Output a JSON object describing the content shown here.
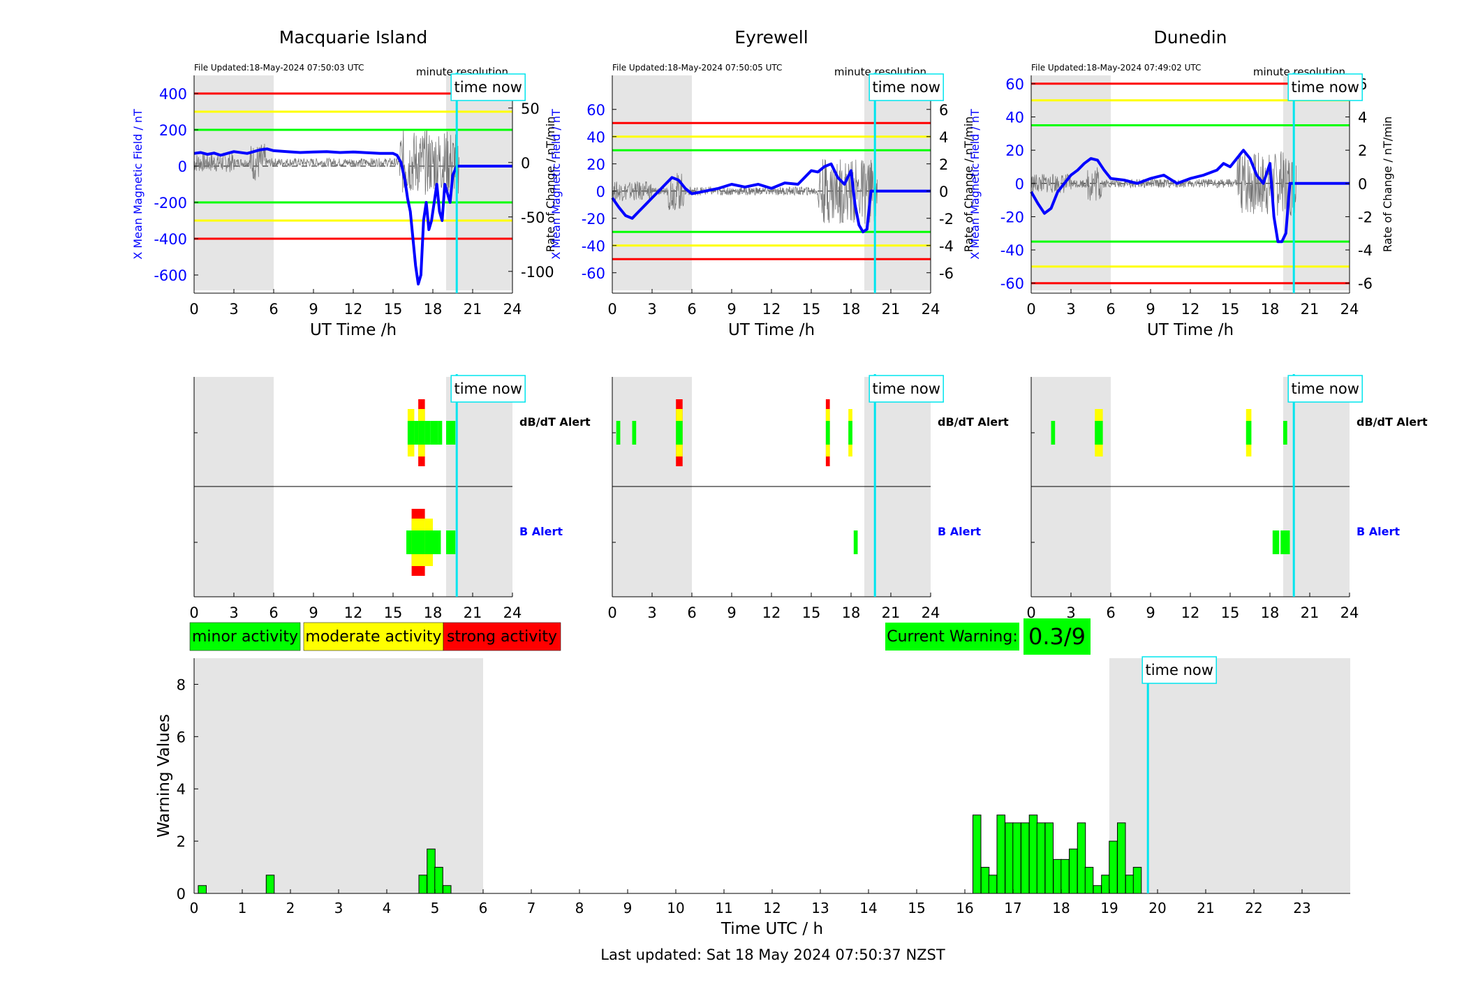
{
  "stations": [
    {
      "name": "Macquarie Island",
      "file_updated": "File Updated:18-May-2024 07:50:03 UTC",
      "resolution_label": "minute resolution",
      "b_axis": {
        "label": "X Mean Magnetic Field / nT",
        "range": [
          -700,
          500
        ],
        "ticks": [
          400,
          200,
          0,
          -200,
          -400,
          -600
        ]
      },
      "rate_axis": {
        "label": "Rate of Change / nT/min",
        "range": [
          -120,
          80
        ],
        "ticks": [
          50,
          0,
          -50,
          -100
        ]
      },
      "thresholds": {
        "green": 200,
        "yellow": 300,
        "red": 400
      },
      "b_series": {
        "x": [
          0,
          0.5,
          1,
          1.5,
          2,
          3,
          4,
          5,
          5.5,
          6,
          7,
          8,
          9,
          10,
          11,
          12,
          13,
          14,
          15,
          15.3,
          15.6,
          15.9,
          16.1,
          16.3,
          16.5,
          16.7,
          16.9,
          17.1,
          17.3,
          17.5,
          17.7,
          17.9,
          18.1,
          18.3,
          18.5,
          18.7,
          18.9,
          19.1,
          19.3,
          19.5,
          19.8,
          20.0,
          24
        ],
        "y": [
          70,
          75,
          65,
          72,
          60,
          80,
          70,
          90,
          95,
          85,
          80,
          75,
          78,
          80,
          75,
          78,
          74,
          70,
          70,
          60,
          20,
          -80,
          -180,
          -250,
          -400,
          -550,
          -650,
          -600,
          -300,
          -200,
          -350,
          -300,
          -200,
          -100,
          -250,
          -300,
          -100,
          -150,
          -200,
          -50,
          0,
          0,
          0
        ]
      },
      "alerts_dbdt": [
        {
          "x": 16.1,
          "w": 0.5,
          "level": 2
        },
        {
          "x": 16.6,
          "w": 0.3,
          "level": 1
        },
        {
          "x": 16.9,
          "w": 0.5,
          "level": 3
        },
        {
          "x": 17.4,
          "w": 0.4,
          "level": 1
        },
        {
          "x": 17.8,
          "w": 0.6,
          "level": 1
        },
        {
          "x": 18.4,
          "w": 0.3,
          "level": 0
        },
        {
          "x": 19.0,
          "w": 0.7,
          "level": 1
        }
      ],
      "alerts_b": [
        {
          "x": 16.0,
          "w": 0.4,
          "level": 1
        },
        {
          "x": 16.4,
          "w": 1.0,
          "level": 3
        },
        {
          "x": 17.4,
          "w": 0.6,
          "level": 2
        },
        {
          "x": 18.0,
          "w": 0.6,
          "level": 1
        },
        {
          "x": 19.0,
          "w": 0.7,
          "level": 1
        }
      ]
    },
    {
      "name": "Eyrewell",
      "file_updated": "File Updated:18-May-2024 07:50:05 UTC",
      "resolution_label": "minute resolution",
      "b_axis": {
        "label": "X Mean Magnetic Field / nT",
        "range": [
          -75,
          85
        ],
        "ticks": [
          60,
          40,
          20,
          0,
          -20,
          -40,
          -60
        ]
      },
      "rate_axis": {
        "label": "Rate of Change / nT/min",
        "range": [
          -7.5,
          8.5
        ],
        "ticks": [
          6,
          4,
          2,
          0,
          -2,
          -4,
          -6
        ]
      },
      "thresholds": {
        "green": 30,
        "yellow": 40,
        "red": 50
      },
      "b_series": {
        "x": [
          0,
          0.5,
          1,
          1.5,
          2,
          2.5,
          3,
          3.5,
          4,
          4.5,
          5,
          5.5,
          6,
          7,
          8,
          9,
          10,
          11,
          12,
          13,
          14,
          14.5,
          15,
          15.5,
          16,
          16.5,
          17,
          17.5,
          18,
          18.3,
          18.6,
          18.9,
          19.2,
          19.5,
          24
        ],
        "y": [
          -5,
          -12,
          -18,
          -20,
          -15,
          -10,
          -5,
          0,
          5,
          10,
          8,
          2,
          -2,
          0,
          2,
          5,
          3,
          5,
          2,
          6,
          5,
          10,
          15,
          14,
          18,
          20,
          10,
          5,
          15,
          -10,
          -25,
          -30,
          -28,
          0,
          0
        ]
      },
      "alerts_dbdt": [
        {
          "x": 0.3,
          "w": 0.3,
          "level": 1
        },
        {
          "x": 1.5,
          "w": 0.3,
          "level": 1
        },
        {
          "x": 4.8,
          "w": 0.5,
          "level": 3
        },
        {
          "x": 16.1,
          "w": 0.3,
          "level": 3
        },
        {
          "x": 17.8,
          "w": 0.3,
          "level": 2
        }
      ],
      "alerts_b": [
        {
          "x": 18.2,
          "w": 0.3,
          "level": 1
        }
      ]
    },
    {
      "name": "Dunedin",
      "file_updated": "File Updated:18-May-2024 07:49:02 UTC",
      "resolution_label": "minute resolution",
      "b_axis": {
        "label": "X Mean Magnetic Field / nT",
        "range": [
          -66,
          65
        ],
        "ticks": [
          60,
          40,
          20,
          0,
          -20,
          -40,
          -60
        ]
      },
      "rate_axis": {
        "label": "Rate of Change / nT/min",
        "range": [
          -6.6,
          6.5
        ],
        "ticks": [
          6,
          4,
          2,
          0,
          -2,
          -4,
          -6
        ]
      },
      "thresholds": {
        "green": 35,
        "yellow": 50,
        "red": 60
      },
      "b_series": {
        "x": [
          0,
          0.5,
          1,
          1.5,
          2,
          2.5,
          3,
          3.5,
          4,
          4.5,
          5,
          5.5,
          6,
          7,
          8,
          9,
          10,
          11,
          12,
          13,
          14,
          14.5,
          15,
          15.5,
          16,
          16.5,
          17,
          17.5,
          18,
          18.3,
          18.6,
          18.9,
          19.2,
          19.5,
          24
        ],
        "y": [
          -5,
          -12,
          -18,
          -15,
          -5,
          0,
          5,
          8,
          12,
          15,
          14,
          8,
          3,
          2,
          0,
          3,
          5,
          0,
          3,
          5,
          8,
          12,
          10,
          15,
          20,
          15,
          5,
          0,
          12,
          -20,
          -35,
          -35,
          -30,
          0,
          0
        ]
      },
      "alerts_dbdt": [
        {
          "x": 1.5,
          "w": 0.3,
          "level": 1
        },
        {
          "x": 4.8,
          "w": 0.6,
          "level": 2
        },
        {
          "x": 16.2,
          "w": 0.4,
          "level": 2
        },
        {
          "x": 19.0,
          "w": 0.3,
          "level": 1
        }
      ],
      "alerts_b": [
        {
          "x": 18.2,
          "w": 0.5,
          "level": 1
        },
        {
          "x": 18.8,
          "w": 0.7,
          "level": 1
        }
      ]
    }
  ],
  "common": {
    "x_axis_label": "UT Time /h",
    "x_ticks": [
      0,
      3,
      6,
      9,
      12,
      15,
      18,
      21,
      24
    ],
    "time_now_label": "time now",
    "time_now_hour": 19.8,
    "night_shading": [
      [
        0,
        6
      ],
      [
        19,
        24
      ]
    ],
    "dbdt_alert_label": "dB/dT Alert",
    "b_alert_label": "B Alert"
  },
  "legend": {
    "minor": "minor activity",
    "moderate": "moderate activity",
    "strong": "strong activity",
    "current_warning_label": "Current Warning:",
    "current_warning_value": "0.3/9"
  },
  "colors": {
    "green": "#00ff00",
    "yellow": "#ffff00",
    "red": "#ff0000",
    "blue": "#0000ff",
    "cyan": "#00e5ee",
    "shade": "#e5e5e5"
  },
  "chart_data": {
    "type": "bar",
    "xlabel": "Time UTC / h",
    "ylabel": "Warning Values",
    "xlim": [
      0,
      24
    ],
    "ylim": [
      0,
      9
    ],
    "x_ticks": [
      0,
      1,
      2,
      3,
      4,
      5,
      6,
      7,
      8,
      9,
      10,
      11,
      12,
      13,
      14,
      15,
      16,
      17,
      18,
      19,
      20,
      21,
      22,
      23
    ],
    "y_ticks": [
      0,
      2,
      4,
      6,
      8
    ],
    "time_now_hour": 19.8,
    "shading": [
      [
        0,
        6
      ],
      [
        19,
        24
      ]
    ],
    "bar_width_h": 0.1667,
    "x": [
      0.17,
      1.58,
      4.75,
      4.92,
      5.08,
      5.25,
      16.25,
      16.42,
      16.58,
      16.75,
      16.92,
      17.08,
      17.25,
      17.42,
      17.58,
      17.75,
      17.92,
      18.08,
      18.25,
      18.42,
      18.58,
      18.75,
      18.92,
      19.08,
      19.25,
      19.42,
      19.58
    ],
    "values": [
      0.3,
      0.7,
      0.7,
      1.7,
      1.0,
      0.3,
      3.0,
      1.0,
      0.7,
      3.0,
      2.7,
      2.7,
      2.7,
      3.0,
      2.7,
      2.7,
      1.3,
      1.3,
      1.7,
      2.7,
      1.0,
      0.3,
      0.7,
      2.0,
      2.7,
      0.7,
      1.0
    ]
  },
  "footer": {
    "last_updated": "Last updated: Sat 18 May 2024 07:50:37 NZST"
  }
}
